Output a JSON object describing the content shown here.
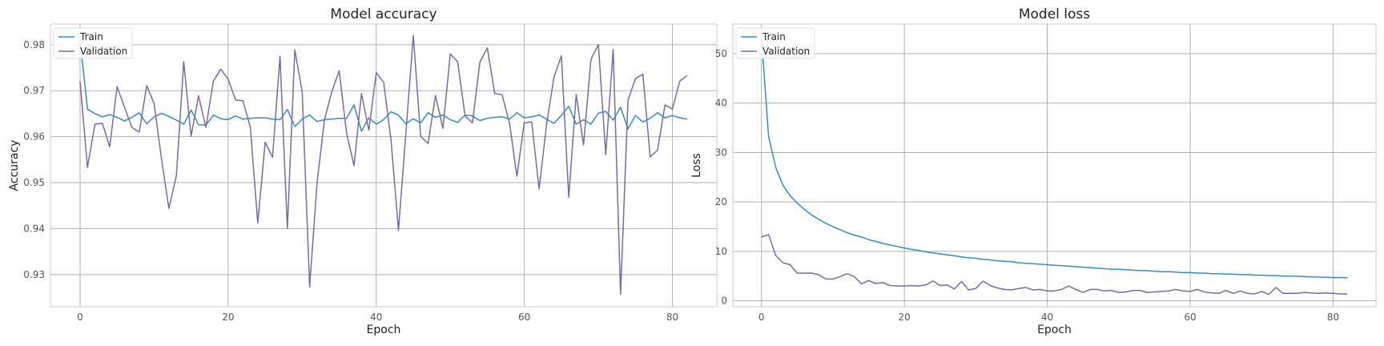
{
  "chart_data": [
    {
      "type": "line",
      "title": "Model accuracy",
      "xlabel": "Epoch",
      "ylabel": "Accuracy",
      "xlim": [
        -4,
        86
      ],
      "ylim": [
        0.923,
        0.9845
      ],
      "xticks": [
        0,
        20,
        40,
        60,
        80
      ],
      "yticks": [
        0.93,
        0.94,
        0.95,
        0.96,
        0.97,
        0.98
      ],
      "tick_labels_x": [
        "0",
        "20",
        "40",
        "60",
        "80"
      ],
      "tick_labels_y": [
        "0.93",
        "0.94",
        "0.95",
        "0.96",
        "0.97",
        "0.98"
      ],
      "grid": true,
      "legend": "top-left",
      "series": [
        {
          "name": "Train",
          "color": "#348abd",
          "values": [
            0.981,
            0.966,
            0.965,
            0.9643,
            0.9648,
            0.9642,
            0.9634,
            0.9642,
            0.9652,
            0.9628,
            0.9643,
            0.9651,
            0.9644,
            0.9636,
            0.9627,
            0.9658,
            0.9626,
            0.9625,
            0.9647,
            0.9639,
            0.9637,
            0.9645,
            0.9638,
            0.964,
            0.9641,
            0.9641,
            0.9638,
            0.9637,
            0.9659,
            0.9622,
            0.9638,
            0.9647,
            0.9633,
            0.9637,
            0.9638,
            0.964,
            0.964,
            0.9669,
            0.9612,
            0.9641,
            0.9627,
            0.9637,
            0.9654,
            0.9647,
            0.9628,
            0.9639,
            0.963,
            0.9652,
            0.9642,
            0.9647,
            0.9637,
            0.9631,
            0.9647,
            0.9645,
            0.9635,
            0.964,
            0.9642,
            0.9643,
            0.9638,
            0.9652,
            0.9641,
            0.9643,
            0.9647,
            0.9638,
            0.9629,
            0.9646,
            0.9666,
            0.9627,
            0.9637,
            0.9627,
            0.9651,
            0.9655,
            0.9636,
            0.9664,
            0.9617,
            0.9646,
            0.9632,
            0.964,
            0.9652,
            0.9641,
            0.9646,
            0.9641,
            0.9638
          ]
        },
        {
          "name": "Validation",
          "color": "#7a68a6",
          "values": [
            0.972,
            0.9533,
            0.9627,
            0.9629,
            0.9578,
            0.9709,
            0.9664,
            0.962,
            0.961,
            0.9711,
            0.9672,
            0.9551,
            0.9444,
            0.9515,
            0.9763,
            0.9601,
            0.9689,
            0.962,
            0.9721,
            0.9747,
            0.9725,
            0.968,
            0.9678,
            0.962,
            0.9412,
            0.9588,
            0.9555,
            0.9775,
            0.94,
            0.9789,
            0.9697,
            0.9273,
            0.9498,
            0.9636,
            0.9698,
            0.9743,
            0.9607,
            0.9537,
            0.9694,
            0.9614,
            0.9739,
            0.9718,
            0.9593,
            0.9396,
            0.9606,
            0.982,
            0.9601,
            0.9585,
            0.969,
            0.9618,
            0.978,
            0.9763,
            0.9645,
            0.963,
            0.9762,
            0.9793,
            0.9694,
            0.9691,
            0.9629,
            0.9514,
            0.963,
            0.9632,
            0.9486,
            0.9626,
            0.9729,
            0.9776,
            0.9468,
            0.9692,
            0.9582,
            0.9768,
            0.98,
            0.9561,
            0.979,
            0.9257,
            0.9679,
            0.9726,
            0.9736,
            0.9556,
            0.9571,
            0.9669,
            0.966,
            0.9721,
            0.9733
          ]
        }
      ]
    },
    {
      "type": "line",
      "title": "Model loss",
      "xlabel": "Epoch",
      "ylabel": "Loss",
      "xlim": [
        -4,
        86
      ],
      "ylim": [
        -1.2,
        56
      ],
      "xticks": [
        0,
        20,
        40,
        60,
        80
      ],
      "yticks": [
        0,
        10,
        20,
        30,
        40,
        50
      ],
      "tick_labels_x": [
        "0",
        "20",
        "40",
        "60",
        "80"
      ],
      "tick_labels_y": [
        "0",
        "10",
        "20",
        "30",
        "40",
        "50"
      ],
      "grid": true,
      "legend": "top-left",
      "series": [
        {
          "name": "Train",
          "color": "#348abd",
          "values": [
            53.5,
            33.3,
            27.0,
            23.4,
            21.3,
            19.8,
            18.5,
            17.4,
            16.5,
            15.7,
            15.0,
            14.4,
            13.8,
            13.3,
            12.9,
            12.4,
            12.0,
            11.6,
            11.3,
            11.0,
            10.7,
            10.4,
            10.2,
            9.9,
            9.7,
            9.5,
            9.3,
            9.1,
            8.9,
            8.7,
            8.6,
            8.4,
            8.3,
            8.1,
            8.0,
            7.9,
            7.7,
            7.6,
            7.5,
            7.4,
            7.3,
            7.2,
            7.1,
            7.0,
            6.9,
            6.8,
            6.7,
            6.6,
            6.5,
            6.4,
            6.4,
            6.3,
            6.2,
            6.1,
            6.1,
            6.0,
            5.9,
            5.9,
            5.8,
            5.7,
            5.7,
            5.6,
            5.6,
            5.5,
            5.5,
            5.4,
            5.4,
            5.3,
            5.3,
            5.2,
            5.2,
            5.1,
            5.1,
            5.0,
            5.0,
            4.95,
            4.9,
            4.85,
            4.8,
            4.75,
            4.7,
            4.7,
            4.65
          ]
        },
        {
          "name": "Validation",
          "color": "#7a68a6",
          "values": [
            12.9,
            13.4,
            9.2,
            7.7,
            7.3,
            5.6,
            5.6,
            5.6,
            5.3,
            4.4,
            4.4,
            4.9,
            5.5,
            4.9,
            3.4,
            4.1,
            3.5,
            3.7,
            3.1,
            3.0,
            3.0,
            3.1,
            3.0,
            3.2,
            4.0,
            3.1,
            3.2,
            2.4,
            3.9,
            2.2,
            2.5,
            4.0,
            3.1,
            2.6,
            2.3,
            2.2,
            2.5,
            2.7,
            2.2,
            2.3,
            2.0,
            2.0,
            2.3,
            3.0,
            2.3,
            1.7,
            2.3,
            2.3,
            2.0,
            2.1,
            1.7,
            1.8,
            2.1,
            2.1,
            1.7,
            1.8,
            1.9,
            2.0,
            2.3,
            2.0,
            1.9,
            2.3,
            1.8,
            1.6,
            1.5,
            2.1,
            1.5,
            2.0,
            1.5,
            1.4,
            1.9,
            1.3,
            2.7,
            1.5,
            1.5,
            1.5,
            1.7,
            1.6,
            1.5,
            1.6,
            1.5,
            1.4,
            1.4
          ]
        }
      ]
    }
  ]
}
